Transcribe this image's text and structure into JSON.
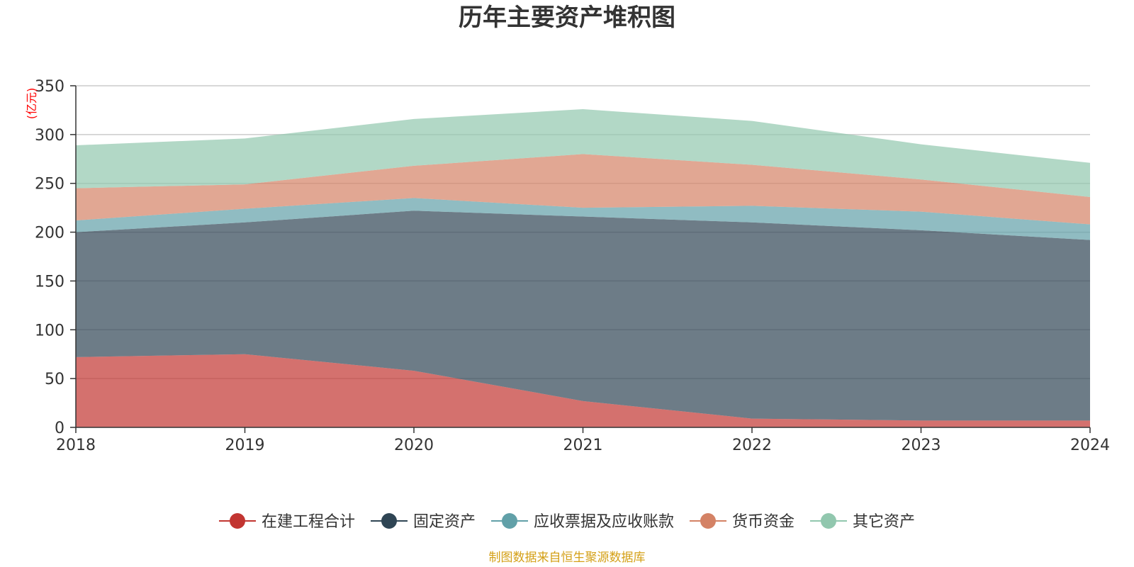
{
  "chart_data": {
    "type": "area",
    "stacked": true,
    "title": "历年主要资产堆积图",
    "unit_label": "(亿元)",
    "x": [
      "2018",
      "2019",
      "2020",
      "2021",
      "2022",
      "2023",
      "2024"
    ],
    "ylim": [
      0,
      350
    ],
    "yticks": [
      "0",
      "50",
      "100",
      "150",
      "200",
      "250",
      "300",
      "350"
    ],
    "grid": true,
    "legend_position": "bottom",
    "series": [
      {
        "name": "在建工程合计",
        "color": "#c23531",
        "values": [
          72,
          75,
          58,
          27,
          9,
          7,
          7
        ]
      },
      {
        "name": "固定资产",
        "color": "#2f4554",
        "values": [
          128,
          135,
          164,
          189,
          201,
          195,
          185
        ]
      },
      {
        "name": "应收票据及应收账款",
        "color": "#61a0a8",
        "values": [
          12,
          14,
          13,
          9,
          17,
          19,
          16
        ]
      },
      {
        "name": "货币资金",
        "color": "#d48265",
        "values": [
          33,
          25,
          33,
          55,
          42,
          33,
          28
        ]
      },
      {
        "name": "其它资产",
        "color": "#91c7ae",
        "values": [
          44,
          47,
          48,
          46,
          45,
          36,
          35
        ]
      }
    ]
  },
  "footer": {
    "source": "制图数据来自恒生聚源数据库",
    "source_color": "#d4a017"
  },
  "colors": {
    "unit_color": "#ff0000",
    "axis": "#333333",
    "grid": "#cccccc"
  }
}
